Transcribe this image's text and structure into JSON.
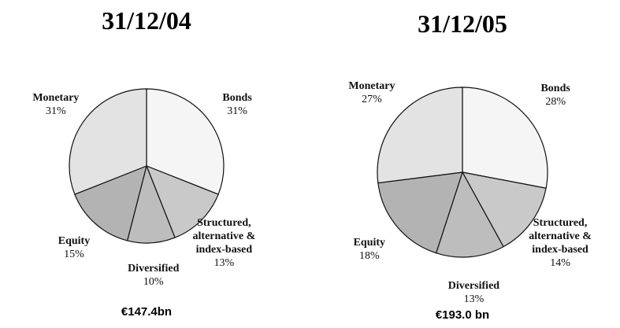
{
  "chart_data": [
    {
      "type": "pie",
      "title": "31/12/04",
      "categories": [
        "Bonds",
        "Structured, alternative & index-based",
        "Diversified",
        "Equity",
        "Monetary"
      ],
      "values": [
        31,
        13,
        10,
        15,
        31
      ],
      "value_labels": [
        "31%",
        "13%",
        "10%",
        "15%",
        "31%"
      ],
      "colors": [
        "#f5f5f5",
        "#c9c9c9",
        "#bdbdbd",
        "#b3b3b3",
        "#e3e3e3"
      ],
      "caption": "€147.4bn"
    },
    {
      "type": "pie",
      "title": "31/12/05",
      "categories": [
        "Bonds",
        "Structured, alternative & index-based",
        "Diversified",
        "Equity",
        "Monetary"
      ],
      "values": [
        28,
        14,
        13,
        18,
        27
      ],
      "value_labels": [
        "28%",
        "14%",
        "13%",
        "18%",
        "27%"
      ],
      "colors": [
        "#f5f5f5",
        "#c9c9c9",
        "#bdbdbd",
        "#b3b3b3",
        "#e3e3e3"
      ],
      "caption": "€193.0 bn"
    }
  ]
}
